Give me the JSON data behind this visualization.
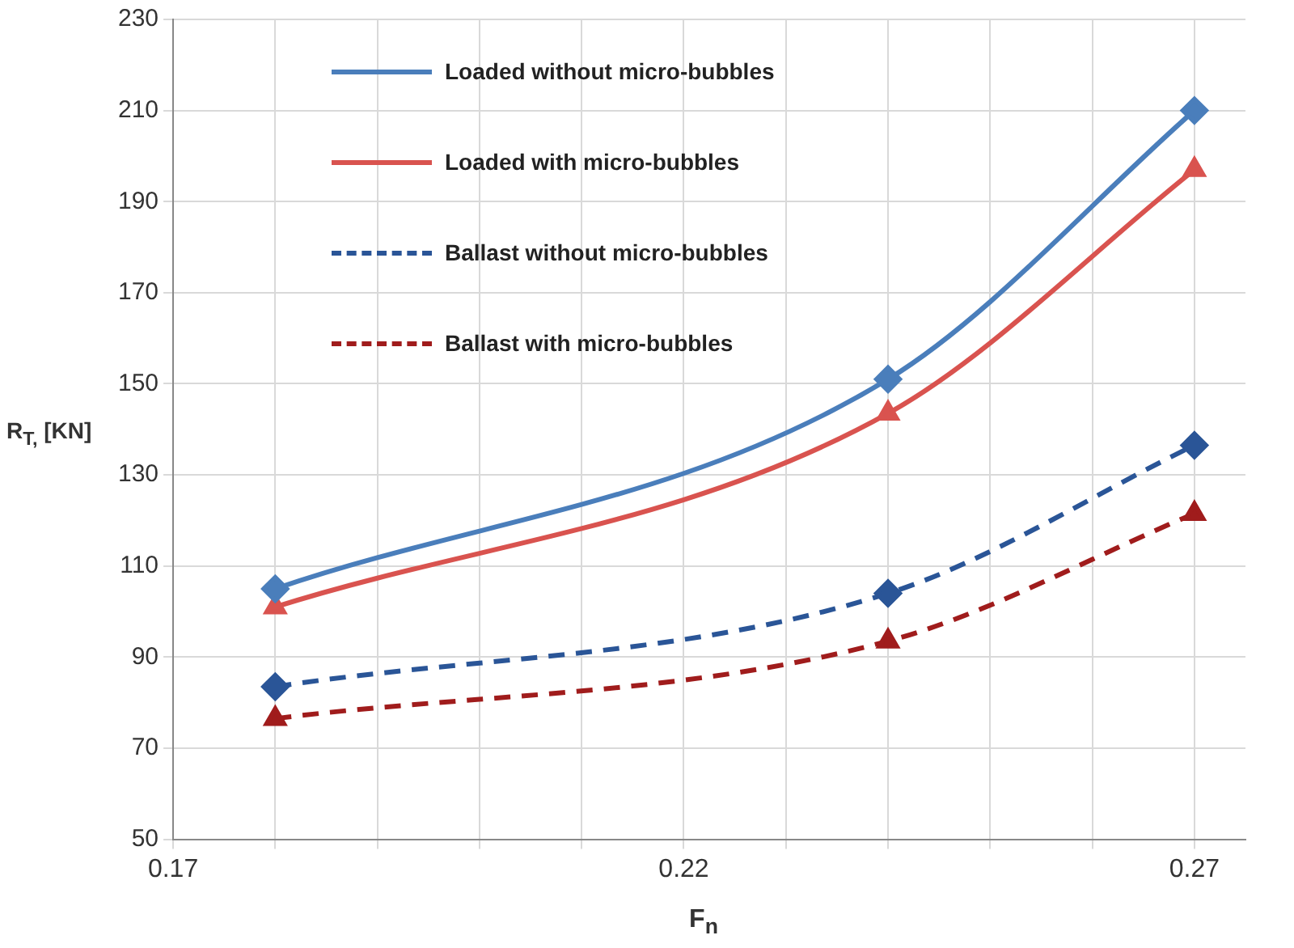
{
  "chart_data": {
    "type": "line",
    "xlabel": "F$_{n}$",
    "ylabel": "R$_{T,}$ [KN]",
    "x": [
      0.18,
      0.24,
      0.27
    ],
    "series": [
      {
        "name": "Loaded without micro-bubbles",
        "color": "#4a7ebb",
        "values": [
          105,
          151,
          210
        ],
        "marker": "diamond",
        "line_style": "solid"
      },
      {
        "name": "Loaded with micro-bubbles",
        "color": "#d9534f",
        "values": [
          101,
          143.5,
          197
        ],
        "marker": "triangle",
        "line_style": "solid"
      },
      {
        "name": "Ballast without micro-bubbles",
        "color": "#2a5597",
        "values": [
          83.5,
          104,
          136.5
        ],
        "marker": "diamond",
        "line_style": "dashed"
      },
      {
        "name": "Ballast with micro-bubbles",
        "color": "#a01c1c",
        "values": [
          76.5,
          93.5,
          121.5
        ],
        "marker": "triangle",
        "line_style": "dashed"
      }
    ],
    "xlim": [
      0.17,
      0.275
    ],
    "xticks": [
      0.17,
      {
        "value": 0.18,
        "label": null
      },
      {
        "value": 0.19,
        "label": null
      },
      {
        "value": 0.2,
        "label": null
      },
      {
        "value": 0.21,
        "label": null
      },
      0.22,
      {
        "value": 0.23,
        "label": null
      },
      {
        "value": 0.24,
        "label": null
      },
      {
        "value": 0.25,
        "label": null
      },
      {
        "value": 0.26,
        "label": null
      },
      0.27
    ],
    "ylim": [
      50,
      230
    ],
    "yticks": [
      50,
      70,
      90,
      110,
      130,
      150,
      170,
      190,
      210,
      230
    ],
    "grid": true,
    "legend": "top left"
  }
}
